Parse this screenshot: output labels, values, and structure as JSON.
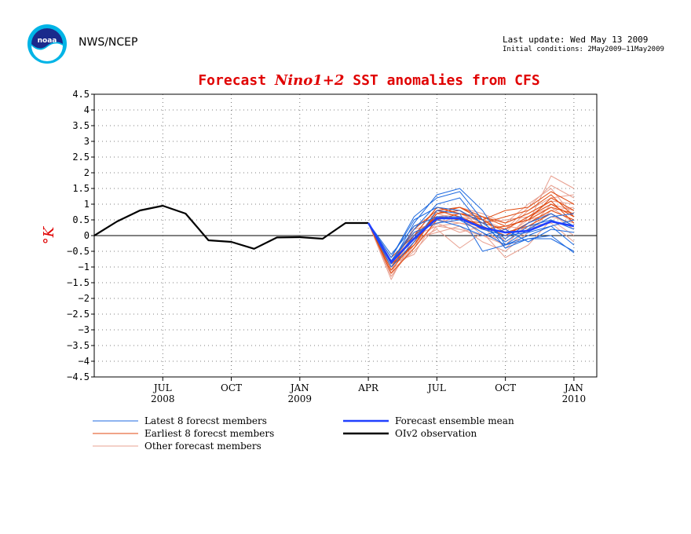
{
  "header": {
    "agency": "NWS/NCEP",
    "last_update": "Last update: Wed May 13 2009",
    "initial_conditions": "Initial conditions: 2May2009–11May2009",
    "logo_icon": "noaa-logo-icon"
  },
  "chart_data": {
    "type": "line",
    "title": "Forecast Nino1+2 SST anomalies from CFS",
    "title_parts": [
      "Forecast ",
      "Nino1+2",
      " SST anomalies from CFS"
    ],
    "ylabel": "°K",
    "ylim": [
      -4.5,
      4.5
    ],
    "yticks": [
      "4.5",
      "4",
      "3.5",
      "3",
      "2.5",
      "2",
      "1.5",
      "1",
      "0.5",
      "0",
      "−0.5",
      "−1",
      "−1.5",
      "−2",
      "−2.5",
      "−3",
      "−3.5",
      "−4",
      "−4.5"
    ],
    "xlim": [
      "2008-04",
      "2010-02"
    ],
    "xticks": [
      {
        "month": "2008-07",
        "label": "JUL",
        "year": "2008"
      },
      {
        "month": "2008-10",
        "label": "OCT",
        "year": ""
      },
      {
        "month": "2009-01",
        "label": "JAN",
        "year": "2009"
      },
      {
        "month": "2009-04",
        "label": "APR",
        "year": ""
      },
      {
        "month": "2009-07",
        "label": "JUL",
        "year": ""
      },
      {
        "month": "2009-10",
        "label": "OCT",
        "year": ""
      },
      {
        "month": "2010-01",
        "label": "JAN",
        "year": "2010"
      }
    ],
    "grid": true,
    "forecast_months": [
      "2009-04",
      "2009-05",
      "2009-06",
      "2009-07",
      "2009-08",
      "2009-09",
      "2009-10",
      "2009-11",
      "2009-12",
      "2010-01"
    ],
    "observation": {
      "name": "OIv2 observation",
      "color": "#000000",
      "months": [
        "2008-04",
        "2008-05",
        "2008-06",
        "2008-07",
        "2008-08",
        "2008-09",
        "2008-10",
        "2008-11",
        "2008-12",
        "2009-01",
        "2009-02",
        "2009-03",
        "2009-04"
      ],
      "values": [
        0.0,
        0.45,
        0.8,
        0.95,
        0.7,
        -0.15,
        -0.2,
        -0.42,
        -0.06,
        -0.05,
        -0.1,
        0.4,
        0.4
      ]
    },
    "ensemble_mean": {
      "name": "Forecast ensemble mean",
      "color": "#2040ff",
      "values": [
        0.4,
        -0.85,
        -0.1,
        0.55,
        0.55,
        0.25,
        0.1,
        0.15,
        0.45,
        0.3
      ]
    },
    "latest_members": {
      "name": "Latest 8 forecst members",
      "color": "#1e6ae0",
      "series": [
        [
          0.4,
          -0.9,
          0.4,
          1.3,
          1.5,
          0.8,
          -0.3,
          0.0,
          0.3,
          -0.3
        ],
        [
          0.4,
          -0.7,
          0.6,
          1.2,
          1.4,
          0.5,
          -0.4,
          -0.1,
          -0.1,
          -0.5
        ],
        [
          0.4,
          -0.8,
          0.2,
          1.0,
          1.2,
          0.3,
          -0.2,
          0.3,
          0.5,
          0.2
        ],
        [
          0.4,
          -1.0,
          -0.2,
          0.8,
          0.7,
          -0.5,
          -0.3,
          0.2,
          0.6,
          0.7
        ],
        [
          0.4,
          -0.6,
          0.3,
          0.6,
          0.6,
          0.2,
          0.0,
          0.1,
          0.3,
          0.5
        ],
        [
          0.4,
          -0.9,
          0.0,
          0.5,
          0.3,
          0.0,
          0.2,
          -0.2,
          0.2,
          0.1
        ],
        [
          0.4,
          -0.7,
          0.5,
          0.9,
          0.8,
          0.4,
          -0.1,
          0.4,
          0.7,
          0.3
        ],
        [
          0.4,
          -0.8,
          0.1,
          0.4,
          0.5,
          0.1,
          -0.3,
          -0.1,
          0.0,
          -0.55
        ]
      ]
    },
    "earliest_members": {
      "name": "Earliest 8 forecst members",
      "color": "#e04a10",
      "series": [
        [
          0.4,
          -0.9,
          -0.3,
          0.8,
          0.9,
          0.6,
          0.3,
          0.5,
          1.2,
          0.8
        ],
        [
          0.4,
          -1.1,
          -0.2,
          0.7,
          0.8,
          0.4,
          0.2,
          0.6,
          1.0,
          0.6
        ],
        [
          0.4,
          -1.0,
          0.0,
          0.9,
          0.7,
          0.5,
          0.8,
          0.9,
          1.4,
          1.0
        ],
        [
          0.4,
          -0.8,
          -0.1,
          0.6,
          0.6,
          0.3,
          0.0,
          0.4,
          0.8,
          0.5
        ],
        [
          0.4,
          -1.2,
          -0.4,
          0.5,
          0.7,
          0.6,
          0.4,
          0.7,
          1.1,
          0.4
        ],
        [
          0.4,
          -0.9,
          0.2,
          0.8,
          0.6,
          0.2,
          0.3,
          0.5,
          0.9,
          0.7
        ],
        [
          0.4,
          -1.0,
          -0.3,
          0.7,
          0.9,
          0.5,
          0.1,
          0.3,
          0.7,
          0.3
        ],
        [
          0.4,
          -0.7,
          0.0,
          0.6,
          0.5,
          0.4,
          0.6,
          0.8,
          1.3,
          0.6
        ]
      ]
    },
    "other_members": {
      "name": "Other forecast members",
      "color": "#e8a090",
      "series": [
        [
          0.4,
          -1.1,
          -0.5,
          0.3,
          0.2,
          0.0,
          -0.3,
          0.4,
          1.9,
          1.5
        ],
        [
          0.4,
          -1.3,
          -0.3,
          0.4,
          0.6,
          0.5,
          0.2,
          0.9,
          1.6,
          1.2
        ],
        [
          0.4,
          -1.2,
          0.1,
          0.5,
          0.4,
          0.3,
          -0.4,
          0.2,
          1.0,
          0.8
        ],
        [
          0.4,
          -1.0,
          -0.2,
          0.2,
          -0.4,
          0.1,
          -0.7,
          -0.3,
          0.5,
          0.0
        ],
        [
          0.4,
          -0.9,
          -0.6,
          0.6,
          0.7,
          0.4,
          0.5,
          0.6,
          0.9,
          0.4
        ],
        [
          0.4,
          -1.4,
          0.0,
          0.9,
          0.8,
          0.2,
          0.1,
          0.8,
          1.2,
          1.3
        ],
        [
          0.4,
          -1.1,
          0.3,
          0.7,
          0.5,
          0.6,
          -0.2,
          0.3,
          0.4,
          -0.2
        ],
        [
          0.4,
          -0.8,
          -0.1,
          0.1,
          0.3,
          -0.2,
          -0.5,
          0.1,
          0.8,
          0.9
        ],
        [
          0.4,
          -1.2,
          -0.4,
          0.8,
          0.9,
          0.7,
          0.4,
          1.0,
          1.5,
          0.6
        ],
        [
          0.4,
          -1.0,
          0.2,
          0.4,
          0.1,
          0.3,
          0.0,
          0.5,
          0.7,
          0.2
        ],
        [
          0.4,
          -1.3,
          -0.2,
          0.6,
          0.6,
          0.0,
          -0.1,
          0.6,
          1.1,
          1.0
        ],
        [
          0.4,
          -0.9,
          0.0,
          0.3,
          0.4,
          0.2,
          0.3,
          0.2,
          0.6,
          0.4
        ]
      ]
    },
    "legend": [
      {
        "key": "latest_members",
        "label": "Latest 8 forecst members",
        "color": "#1e6ae0",
        "width": 1
      },
      {
        "key": "ensemble_mean",
        "label": "Forecast ensemble mean",
        "color": "#2040ff",
        "width": 2.5
      },
      {
        "key": "earliest_members",
        "label": "Earliest 8 forecst members",
        "color": "#e04a10",
        "width": 1
      },
      {
        "key": "observation",
        "label": "OIv2 observation",
        "color": "#000000",
        "width": 2.5
      },
      {
        "key": "other_members",
        "label": "Other forecast members",
        "color": "#e8a090",
        "width": 1
      }
    ]
  }
}
